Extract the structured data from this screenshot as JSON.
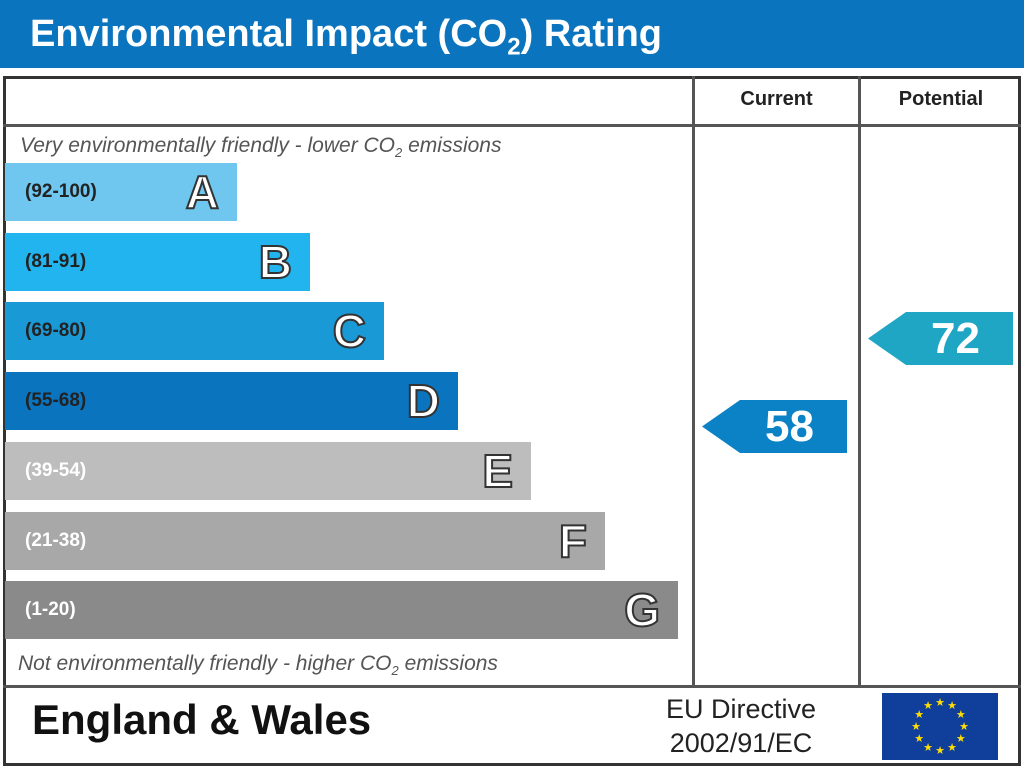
{
  "title": "Environmental Impact (CO2) Rating",
  "title_parts": {
    "pre": "Environmental Impact (CO",
    "sub": "2",
    "post": ") Rating"
  },
  "columns": {
    "current": "Current",
    "potential": "Potential"
  },
  "top_note": {
    "pre": "Very environmentally friendly - lower CO",
    "sub": "2",
    "post": " emissions"
  },
  "bottom_note": {
    "pre": "Not environmentally friendly - higher CO",
    "sub": "2",
    "post": " emissions"
  },
  "chart_data": {
    "type": "bar",
    "categories": [
      "A",
      "B",
      "C",
      "D",
      "E",
      "F",
      "G"
    ],
    "ranges": [
      "(92-100)",
      "(81-91)",
      "(69-80)",
      "(55-68)",
      "(39-54)",
      "(21-38)",
      "(1-20)"
    ],
    "colors": [
      "#6fc6ef",
      "#22b4ee",
      "#1a99d7",
      "#0b74bf",
      "#bdbdbd",
      "#a8a8a8",
      "#8a8a8a"
    ],
    "current": {
      "value": 58,
      "band": "D",
      "color": "#0b82c6"
    },
    "potential": {
      "value": 72,
      "band": "C",
      "color": "#1fa6c4"
    }
  },
  "footer": {
    "region": "England & Wales",
    "directive_line1": "EU Directive",
    "directive_line2": "2002/91/EC",
    "flag_icon": "eu-flag-icon"
  }
}
